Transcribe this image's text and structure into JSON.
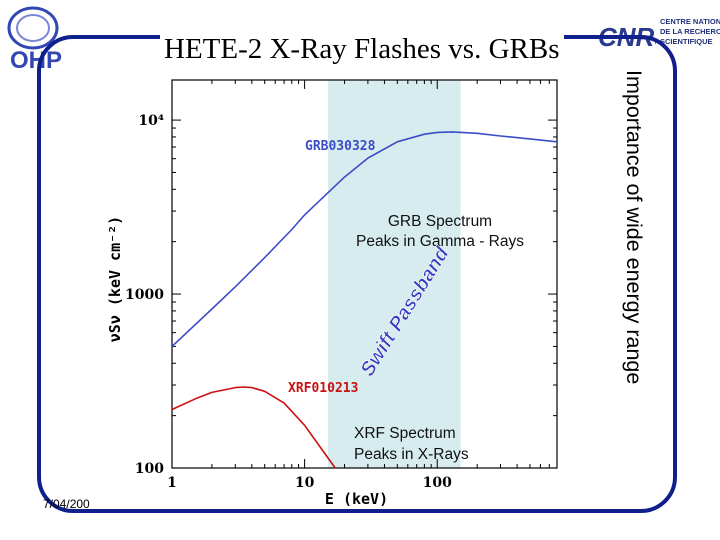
{
  "title": "HETE-2 X-Ray Flashes vs. GRBs",
  "side_text": "Importance of wide energy range",
  "footer_date": "7/04/200",
  "logos": {
    "left": "OHP",
    "right_mark": "CNRS",
    "right_text": [
      "CENTRE NATIONAL",
      "DE LA RECHERCHE",
      "SCIENTIFIQUE"
    ]
  },
  "colors": {
    "frame": "#0f1f8c",
    "grb_curve": "#3c4cc8",
    "xrf_curve": "#cc1111",
    "passband": "#d6ecee",
    "passband_text": "#3b3bc4"
  },
  "chart_data": {
    "type": "line",
    "xscale": "log",
    "yscale": "log",
    "xlim": [
      1,
      800
    ],
    "ylim": [
      100,
      17000
    ],
    "xlabel": "E (keV)",
    "ylabel": "νSν (keV cm⁻²)",
    "xticks": [
      1,
      10,
      100
    ],
    "xticklabels": [
      "1",
      "10",
      "100"
    ],
    "yticks": [
      100,
      1000,
      10000
    ],
    "yticklabels": [
      "100",
      "1000",
      "10⁴"
    ],
    "grid": false,
    "passband": {
      "label": "Swift Passband",
      "range": [
        15,
        150
      ]
    },
    "series": [
      {
        "name": "GRB030328",
        "x": [
          1,
          2,
          3,
          5,
          8,
          10,
          20,
          30,
          50,
          80,
          100,
          130,
          200,
          300,
          500,
          800
        ],
        "y": [
          500,
          820,
          1100,
          1620,
          2350,
          2850,
          4700,
          6050,
          7500,
          8300,
          8500,
          8550,
          8400,
          8100,
          7800,
          7500
        ]
      },
      {
        "name": "XRF010213",
        "x": [
          1,
          1.5,
          2,
          3,
          3.5,
          4,
          5,
          7,
          10,
          14,
          17
        ],
        "y": [
          217,
          250,
          272,
          290,
          292,
          290,
          276,
          236,
          176,
          123,
          100
        ]
      }
    ],
    "annotations": [
      {
        "text_lines": [
          "GRB Spectrum",
          "Peaks in Gamma - Rays"
        ]
      },
      {
        "text_lines": [
          "XRF Spectrum",
          "Peaks in X-Rays"
        ]
      }
    ]
  }
}
